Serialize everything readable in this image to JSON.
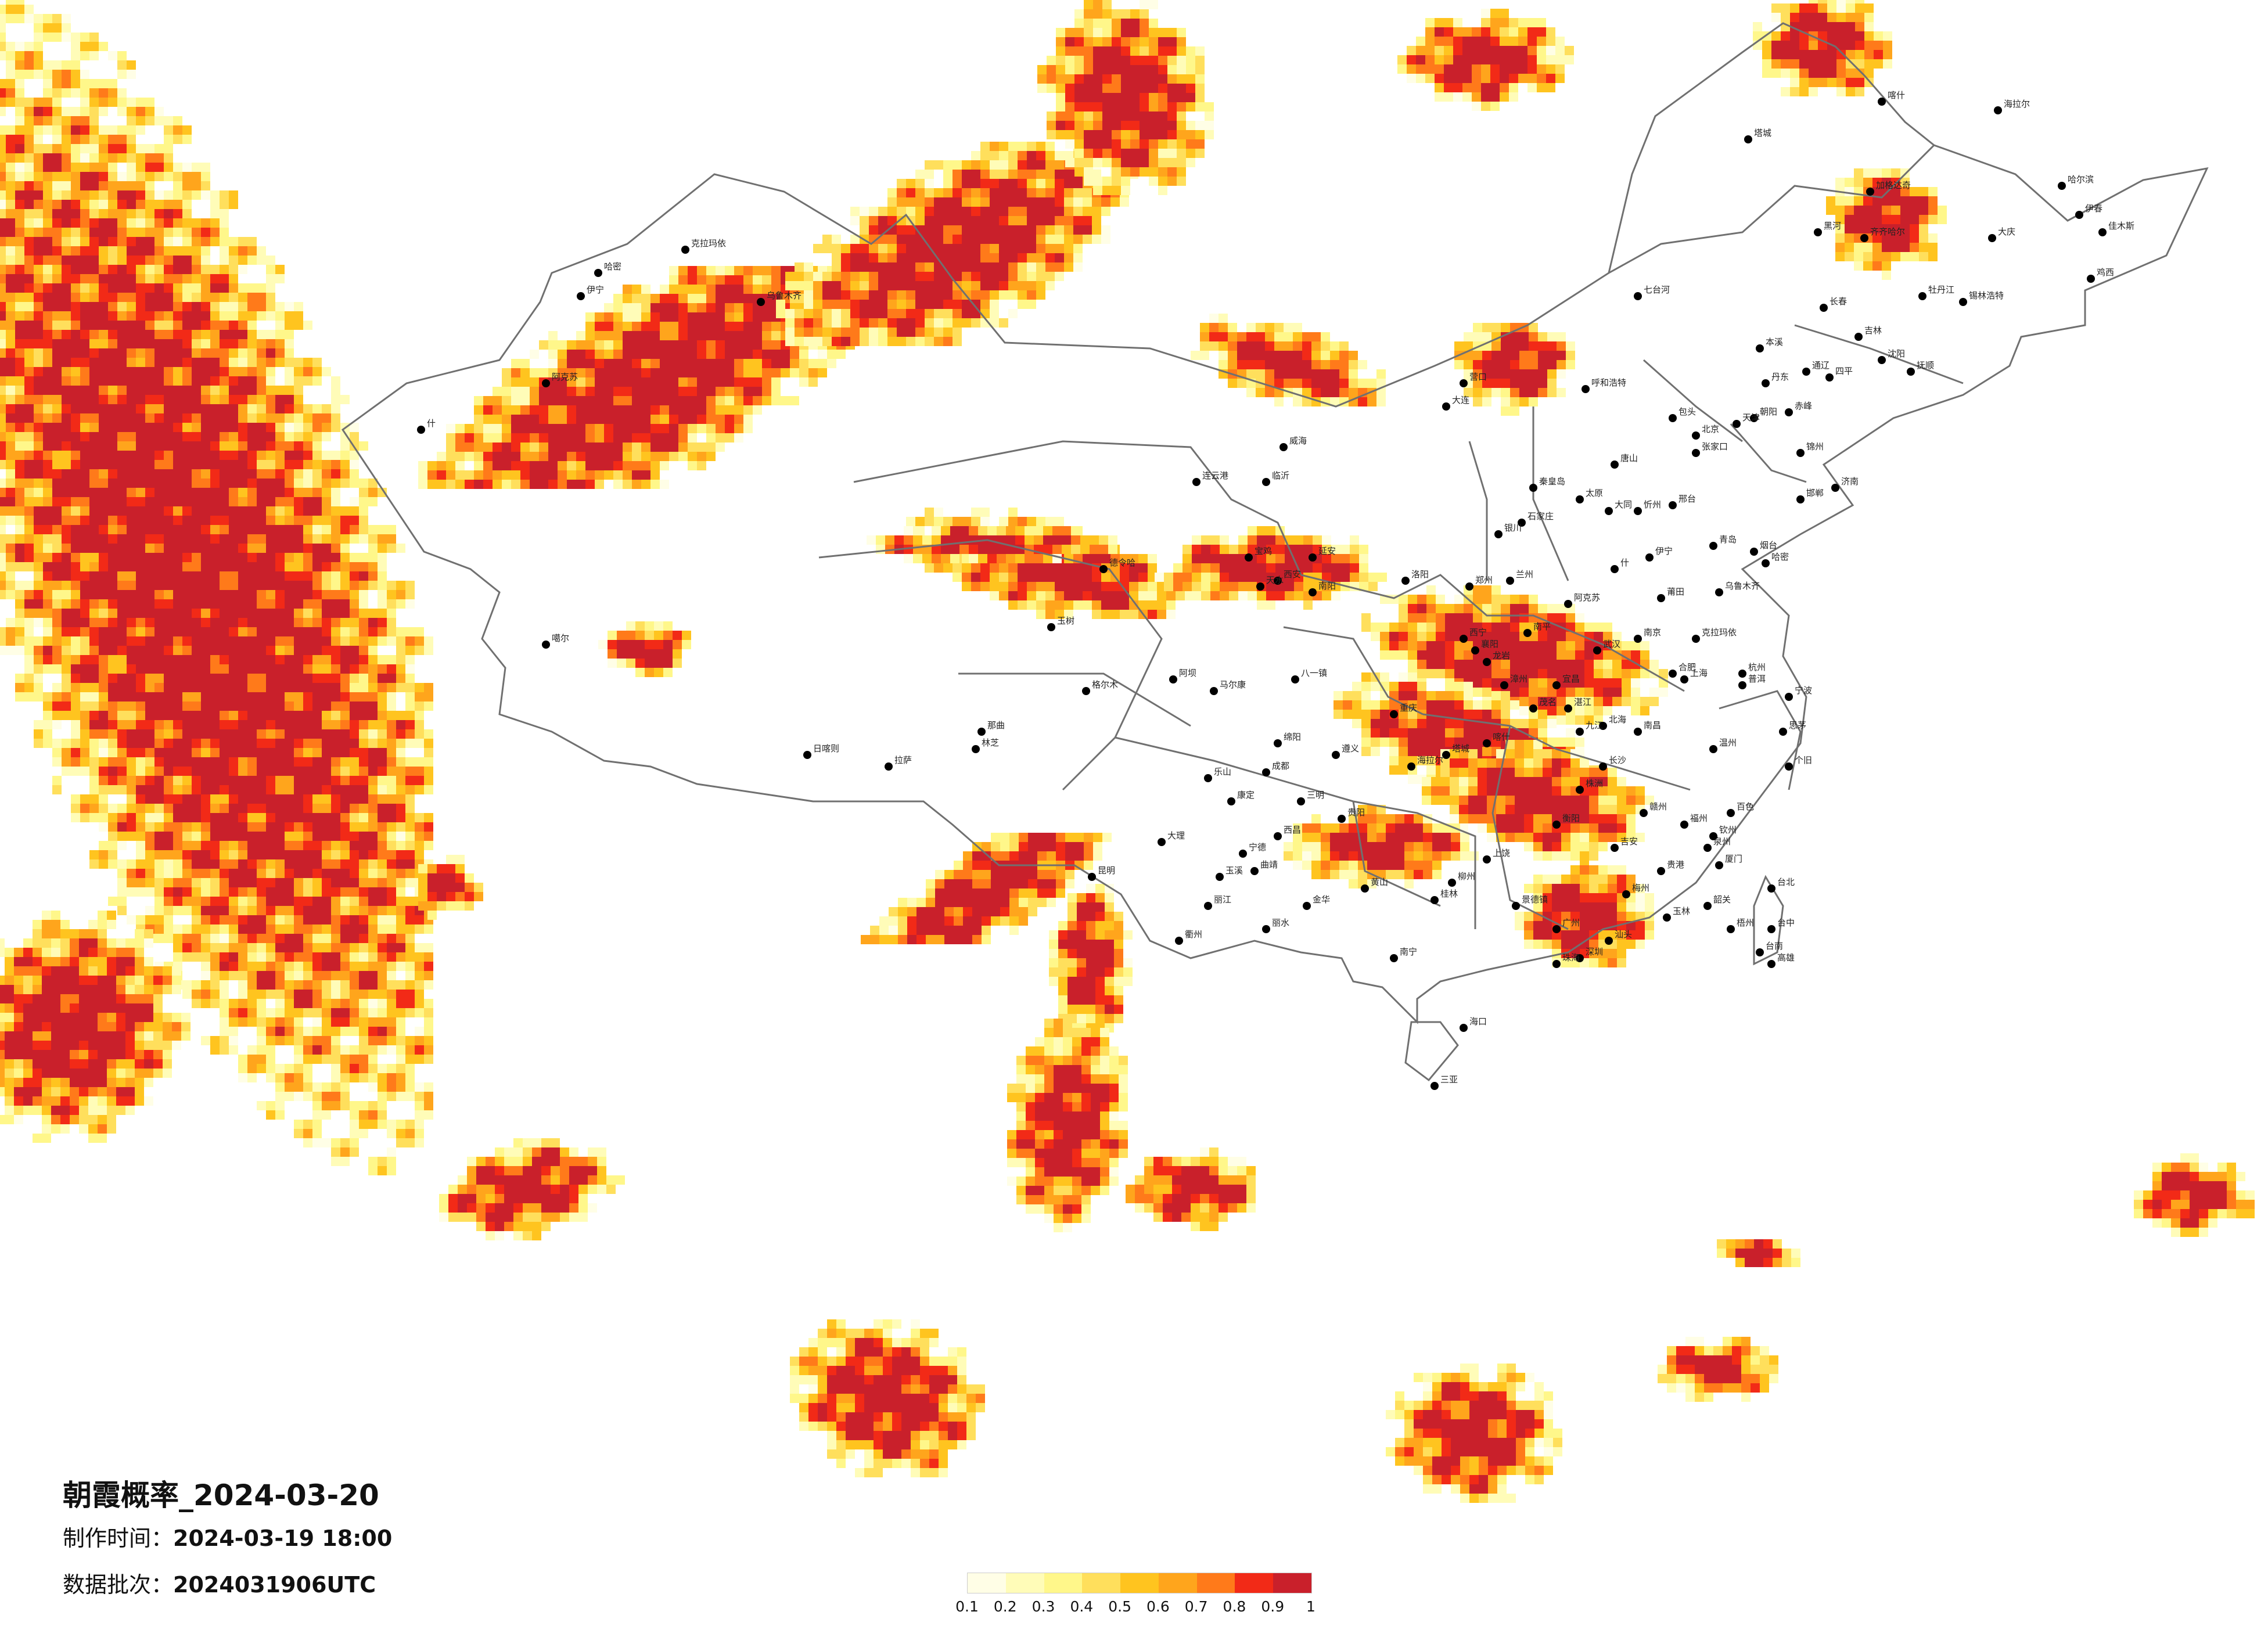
{
  "title": "朝霞概率_2024-03-20",
  "made_time": {
    "label": "制作时间：",
    "value": "2024-03-19 18:00"
  },
  "batch": {
    "label": "数据批次：",
    "value": "2024031906UTC"
  },
  "legend": {
    "colors": [
      "#fffee6",
      "#fffcb8",
      "#fff78a",
      "#ffdf5c",
      "#ffc41f",
      "#ffa51c",
      "#ff7a1a",
      "#f22a17",
      "#c9202b"
    ],
    "labels": [
      "0.1",
      "0.2",
      "0.3",
      "0.4",
      "0.5",
      "0.6",
      "0.7",
      "0.8",
      "0.9",
      "1"
    ]
  },
  "cities": [
    "克拉玛依",
    "乌鲁木齐",
    "哈密",
    "伊宁",
    "阿克苏",
    "什",
    "喀什",
    "塔城",
    "海拉尔",
    "加格达奇",
    "黑河",
    "齐齐哈尔",
    "大庆",
    "哈尔滨",
    "伊春",
    "佳木斯",
    "鸡西",
    "七台河",
    "牡丹江",
    "锡林浩特",
    "长春",
    "吉林",
    "通辽",
    "四平",
    "沈阳",
    "抚顺",
    "本溪",
    "丹东",
    "赤峰",
    "朝阳",
    "锦州",
    "营口",
    "大连",
    "呼和浩特",
    "包头",
    "张家口",
    "北京",
    "天津",
    "唐山",
    "秦皇岛",
    "石家庄",
    "太原",
    "大同",
    "忻州",
    "邢台",
    "邯郸",
    "济南",
    "青岛",
    "烟台",
    "威海",
    "临沂",
    "连云港",
    "银川",
    "兰州",
    "西宁",
    "郑州",
    "洛阳",
    "南阳",
    "西安",
    "延安",
    "宝鸡",
    "天水",
    "武汉",
    "宜昌",
    "襄阳",
    "南京",
    "合肥",
    "上海",
    "杭州",
    "宁波",
    "温州",
    "福州",
    "厦门",
    "泉州",
    "南昌",
    "长沙",
    "株洲",
    "衡阳",
    "广州",
    "深圳",
    "珠海",
    "汕头",
    "梅州",
    "南宁",
    "桂林",
    "柳州",
    "贵阳",
    "遵义",
    "重庆",
    "成都",
    "绵阳",
    "乐山",
    "康定",
    "昆明",
    "大理",
    "丽江",
    "玉溪",
    "曲靖",
    "西昌",
    "海口",
    "三亚",
    "台北",
    "台中",
    "台南",
    "高雄",
    "拉萨",
    "日喀则",
    "林芝",
    "那曲",
    "八一镇",
    "格尔木",
    "德令哈",
    "玉树",
    "马尔康",
    "阿坝",
    "噶尔",
    "茂名",
    "湛江",
    "北海",
    "钦州",
    "百色",
    "个旧",
    "普洱",
    "思茅",
    "贵港",
    "玉林",
    "梧州",
    "韶关",
    "赣州",
    "吉安",
    "上饶",
    "景德镇",
    "九江",
    "黄山",
    "丽水",
    "金华",
    "衢州",
    "宁德",
    "三明",
    "南平",
    "龙岩",
    "漳州",
    "莆田"
  ]
}
